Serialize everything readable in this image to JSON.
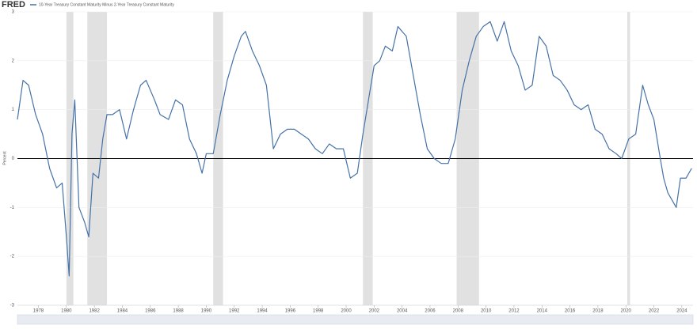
{
  "brand": "FRED",
  "chart_data": {
    "type": "line",
    "title": "10-Year Treasury Constant Maturity Minus 2-Year Treasury Constant Maturity",
    "ylabel": "Percent",
    "xlim": [
      1976.5,
      2024.8
    ],
    "xticks": [
      1978,
      1980,
      1982,
      1984,
      1986,
      1988,
      1990,
      1992,
      1994,
      1996,
      1998,
      2000,
      2002,
      2004,
      2006,
      2008,
      2010,
      2012,
      2014,
      2016,
      2018,
      2020,
      2022,
      2024
    ],
    "ylim": [
      -3,
      3
    ],
    "yticks": [
      -3,
      -2,
      -1,
      0,
      1,
      2,
      3
    ],
    "grid": true,
    "shaded_periods": [
      [
        1980.0,
        1980.5
      ],
      [
        1981.5,
        1982.9
      ],
      [
        1990.5,
        1991.2
      ],
      [
        2001.2,
        2001.9
      ],
      [
        2007.9,
        2009.5
      ],
      [
        2020.1,
        2020.3
      ]
    ],
    "series": [
      {
        "name": "10-Year Treasury Constant Maturity Minus 2-Year Treasury Constant Maturity",
        "color": "#4572a7",
        "x": [
          1976.5,
          1976.9,
          1977.3,
          1977.8,
          1978.3,
          1978.8,
          1979.3,
          1979.7,
          1980.0,
          1980.2,
          1980.4,
          1980.6,
          1980.9,
          1981.3,
          1981.6,
          1981.9,
          1982.3,
          1982.6,
          1982.9,
          1983.3,
          1983.8,
          1984.3,
          1984.8,
          1985.3,
          1985.7,
          1986.3,
          1986.7,
          1987.3,
          1987.8,
          1988.3,
          1988.8,
          1989.3,
          1989.7,
          1990.0,
          1990.5,
          1991.0,
          1991.5,
          1992.0,
          1992.5,
          1992.8,
          1993.3,
          1993.8,
          1994.3,
          1994.8,
          1995.3,
          1995.8,
          1996.3,
          1996.8,
          1997.3,
          1997.8,
          1998.3,
          1998.8,
          1999.3,
          1999.8,
          2000.3,
          2000.8,
          2001.2,
          2001.6,
          2002.0,
          2002.4,
          2002.8,
          2003.3,
          2003.7,
          2004.3,
          2004.8,
          2005.3,
          2005.8,
          2006.3,
          2006.8,
          2007.3,
          2007.8,
          2008.3,
          2008.8,
          2009.3,
          2009.8,
          2010.3,
          2010.8,
          2011.3,
          2011.8,
          2012.3,
          2012.8,
          2013.3,
          2013.8,
          2014.3,
          2014.8,
          2015.3,
          2015.8,
          2016.3,
          2016.8,
          2017.3,
          2017.8,
          2018.3,
          2018.8,
          2019.3,
          2019.7,
          2020.2,
          2020.7,
          2021.2,
          2021.6,
          2022.0,
          2022.4,
          2022.7,
          2023.0,
          2023.4,
          2023.6,
          2023.9,
          2024.3,
          2024.7
        ],
        "values": [
          0.8,
          1.6,
          1.5,
          0.9,
          0.5,
          -0.2,
          -0.6,
          -0.5,
          -1.6,
          -2.4,
          0.5,
          1.2,
          -1.0,
          -1.3,
          -1.6,
          -0.3,
          -0.4,
          0.4,
          0.9,
          0.9,
          1.0,
          0.4,
          1.0,
          1.5,
          1.6,
          1.2,
          0.9,
          0.8,
          1.2,
          1.1,
          0.4,
          0.1,
          -0.3,
          0.1,
          0.1,
          0.9,
          1.6,
          2.1,
          2.5,
          2.6,
          2.2,
          1.9,
          1.5,
          0.2,
          0.5,
          0.6,
          0.6,
          0.5,
          0.4,
          0.2,
          0.1,
          0.3,
          0.2,
          0.2,
          -0.4,
          -0.3,
          0.5,
          1.2,
          1.9,
          2.0,
          2.3,
          2.2,
          2.7,
          2.5,
          1.7,
          0.9,
          0.2,
          0.0,
          -0.1,
          -0.1,
          0.4,
          1.4,
          2.0,
          2.5,
          2.7,
          2.8,
          2.4,
          2.8,
          2.2,
          1.9,
          1.4,
          1.5,
          2.5,
          2.3,
          1.7,
          1.6,
          1.4,
          1.1,
          1.0,
          1.1,
          0.6,
          0.5,
          0.2,
          0.1,
          0.0,
          0.4,
          0.5,
          1.5,
          1.1,
          0.8,
          0.1,
          -0.4,
          -0.7,
          -0.9,
          -1.0,
          -0.4,
          -0.4,
          -0.2
        ]
      }
    ]
  }
}
